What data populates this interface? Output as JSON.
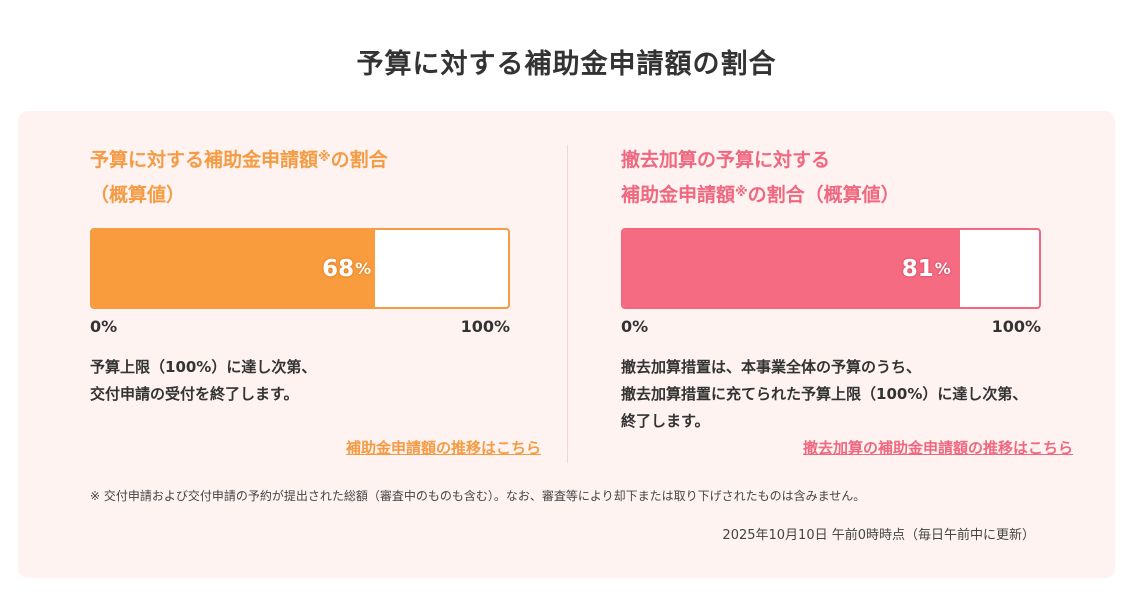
{
  "page_title": "予算に対する補助金申請額の割合",
  "colors": {
    "panel_bg": "#fff3f2",
    "orange": "#f99c3e",
    "pink": "#f56b82"
  },
  "left": {
    "title_line1": "予算に対する補助金申請額",
    "title_mark": "※",
    "title_line1_suffix": "の割合",
    "title_line2": "（概算値）",
    "percent_value": 68,
    "percent_number": "68",
    "percent_unit": "%",
    "axis_min": "0%",
    "axis_max": "100%",
    "note_line1": "予算上限（100%）に達し次第、",
    "note_line2": "交付申請の受付を終了します。",
    "link_text": "補助金申請額の推移はこちら"
  },
  "right": {
    "title_line1": "撤去加算の予算に対する",
    "title_line2": "補助金申請額",
    "title_mark": "※",
    "title_line2_suffix": "の割合（概算値）",
    "percent_value": 81,
    "percent_number": "81",
    "percent_unit": "%",
    "axis_min": "0%",
    "axis_max": "100%",
    "note_line1": "撤去加算措置は、本事業全体の予算のうち、",
    "note_line2": "撤去加算措置に充てられた予算上限（100%）に達し次第、",
    "note_line3": "終了します。",
    "link_text": "撤去加算の補助金申請額の推移はこちら"
  },
  "footnote": "※ 交付申請および交付申請の予約が提出された総額（審査中のものも含む）。なお、審査等により却下または取り下げされたものは含みません。",
  "timestamp": "2025年10月10日 午前0時時点（毎日午前中に更新）"
}
